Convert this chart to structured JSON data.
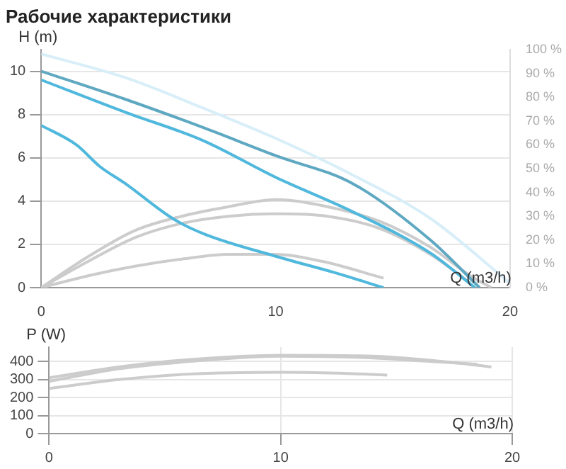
{
  "chart_data": [
    {
      "type": "line",
      "title": "Рабочие характеристики",
      "xlabel": "Q (m3/h)",
      "ylabel": "H (m)",
      "xlim": [
        0,
        20
      ],
      "xticks": [
        0,
        10,
        20
      ],
      "ylim": [
        0,
        11
      ],
      "yticks": [
        0,
        2,
        4,
        6,
        8,
        10
      ],
      "y2lim": [
        0,
        100
      ],
      "y2ticks": [
        {
          "value": 0,
          "label": "0 %"
        },
        {
          "value": 10,
          "label": "10 %"
        },
        {
          "value": 20,
          "label": "20 %"
        },
        {
          "value": 30,
          "label": "30 %"
        },
        {
          "value": 40,
          "label": "40 %"
        },
        {
          "value": 50,
          "label": "50 %"
        },
        {
          "value": 60,
          "label": "60 %"
        },
        {
          "value": 70,
          "label": "70 %"
        },
        {
          "value": 80,
          "label": "80 %"
        },
        {
          "value": 90,
          "label": "90 %"
        },
        {
          "value": 100,
          "label": "100 %"
        }
      ],
      "grid": "y",
      "legend": false,
      "marker": "none",
      "series": [
        {
          "color": "#d8eef8",
          "x": [
            0,
            3.6,
            6.9,
            10,
            13.3,
            16.6,
            20
          ],
          "values": [
            10.8,
            9.7,
            8.3,
            6.9,
            5.2,
            3.2,
            0.2
          ]
        },
        {
          "color": "#5ea8c2",
          "x": [
            0,
            3.6,
            6.9,
            10,
            13.3,
            16.6,
            18.7
          ],
          "values": [
            10,
            8.7,
            7.4,
            6.1,
            4.8,
            2.2,
            0
          ]
        },
        {
          "color": "#4fb8dc",
          "x": [
            0,
            3.6,
            6.9,
            10,
            13.3,
            16.6,
            18.5
          ],
          "values": [
            9.6,
            8.1,
            6.8,
            5.1,
            3.5,
            1.6,
            0
          ]
        },
        {
          "color": "#4fb8dc",
          "x": [
            0,
            1.5,
            2.5,
            3.6,
            5.6,
            6.9,
            10,
            12.5,
            14.6
          ],
          "values": [
            7.5,
            6.6,
            5.6,
            4.8,
            3.2,
            2.5,
            1.45,
            0.7,
            0
          ]
        },
        {
          "color": "#cccccc",
          "axis": "y2",
          "x": [
            0,
            2,
            4,
            6,
            8,
            10,
            12.2,
            14.4,
            16.6,
            18.3,
            19.2
          ],
          "values": [
            0,
            13,
            24,
            30,
            34,
            37,
            34,
            28,
            17,
            5,
            0
          ]
        },
        {
          "color": "#cccccc",
          "axis": "y2",
          "x": [
            0,
            2,
            4,
            6,
            8,
            10,
            12.2,
            14.4,
            16.6,
            18.3
          ],
          "values": [
            0,
            11,
            21,
            27,
            30,
            31,
            30,
            25,
            14,
            2
          ]
        },
        {
          "color": "#cccccc",
          "axis": "y2",
          "x": [
            0,
            2,
            4,
            6,
            8,
            10,
            12,
            14.6
          ],
          "values": [
            0,
            5,
            9,
            12,
            14,
            14,
            11,
            4
          ]
        }
      ]
    },
    {
      "type": "line",
      "xlabel": "Q (m3/h)",
      "ylabel": "P (W)",
      "xlim": [
        0,
        20
      ],
      "xticks": [
        0,
        10,
        20
      ],
      "ylim": [
        0,
        480
      ],
      "yticks": [
        0,
        100,
        200,
        300,
        400
      ],
      "grid": true,
      "legend": false,
      "marker": "none",
      "series": [
        {
          "color": "#cccccc",
          "x": [
            0,
            3,
            6,
            10,
            14,
            17,
            19.1
          ],
          "values": [
            310,
            370,
            410,
            435,
            430,
            400,
            370
          ]
        },
        {
          "color": "#cccccc",
          "x": [
            0,
            3,
            6,
            10,
            14,
            16.5,
            18.5
          ],
          "values": [
            290,
            360,
            400,
            430,
            420,
            400,
            385
          ]
        },
        {
          "color": "#cccccc",
          "x": [
            0,
            3,
            6,
            10,
            12.5,
            14.6
          ],
          "values": [
            250,
            300,
            330,
            340,
            335,
            325
          ]
        }
      ]
    }
  ]
}
